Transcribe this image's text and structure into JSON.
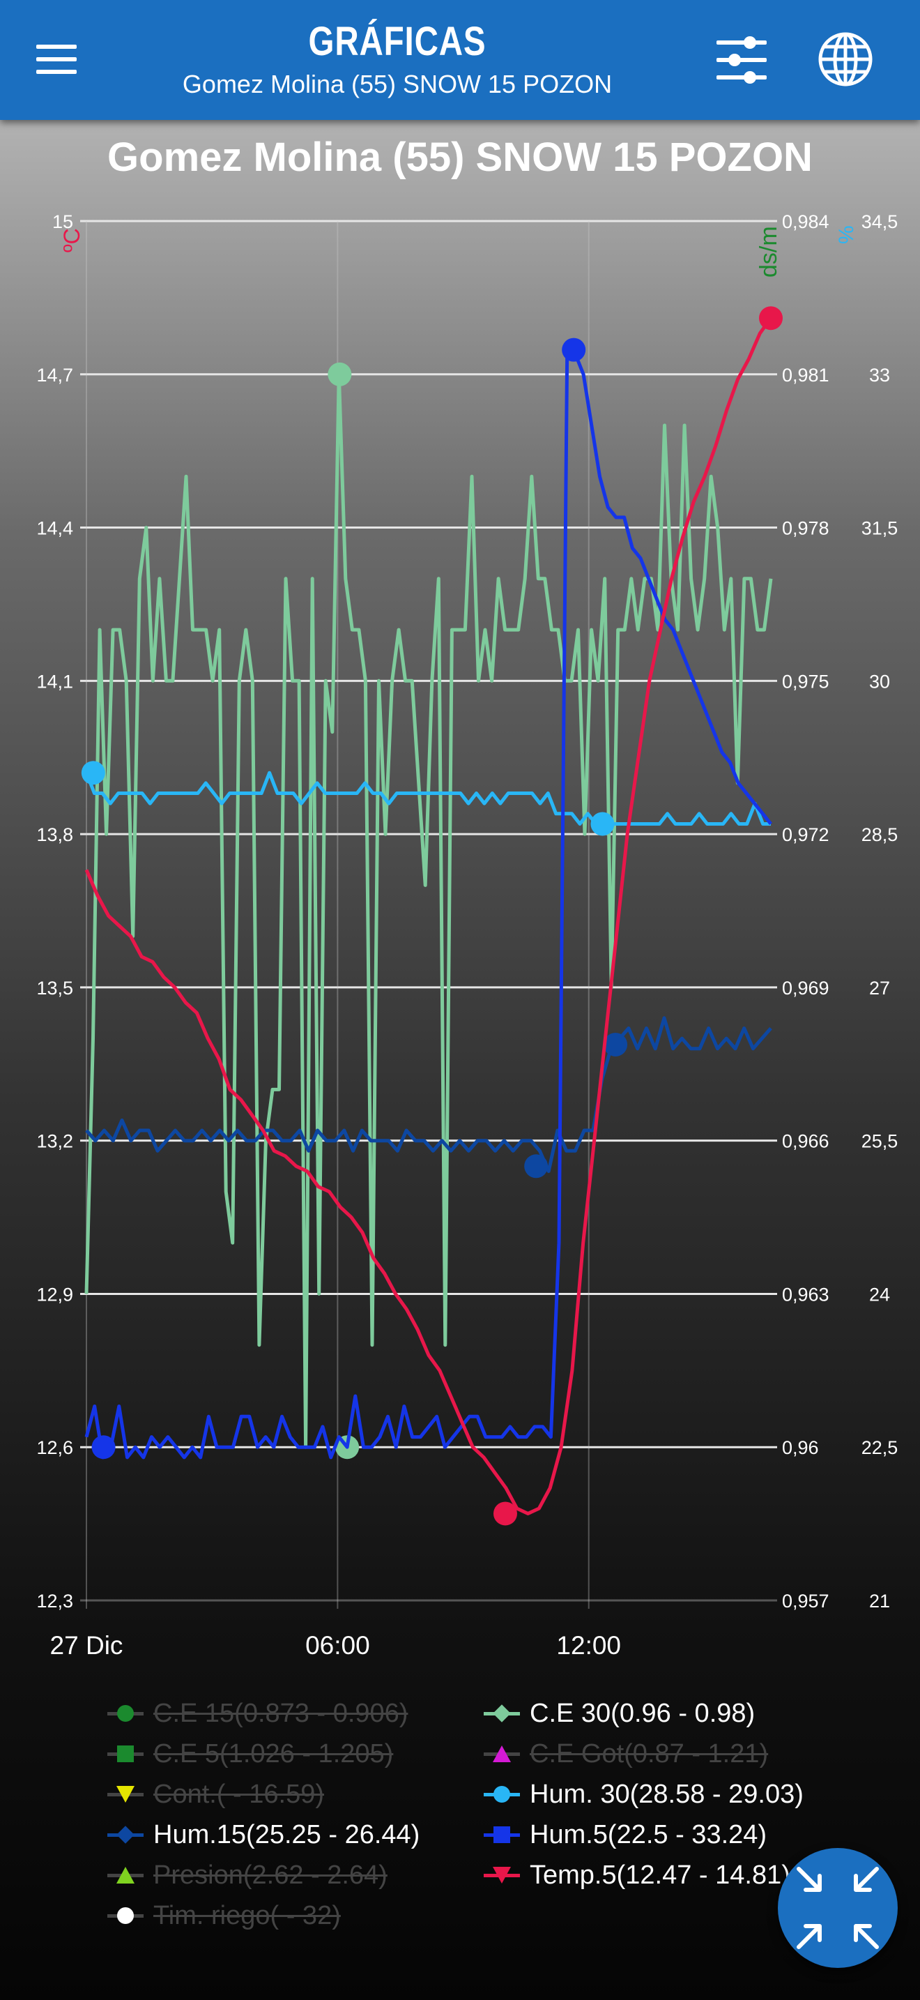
{
  "appbar": {
    "title": "GRÁFICAS",
    "subtitle": "Gomez Molina (55) SNOW 15 POZON",
    "icons": [
      "menu-icon",
      "tune-icon",
      "globe-icon"
    ]
  },
  "chart_data": {
    "type": "line",
    "title": "Gomez Molina (55) SNOW 15 POZON",
    "x_labels": [
      "27 Dic",
      "06:00",
      "12:00"
    ],
    "x_range": [
      "27 Dic 00:00",
      "27 Dic 16:30"
    ],
    "axes": {
      "left": {
        "unit": "ºC",
        "ylim": [
          12.3,
          15
        ],
        "ticks": [
          "12,3",
          "12,6",
          "12,9",
          "13,2",
          "13,5",
          "13,8",
          "14,1",
          "14,4",
          "14,7",
          "15"
        ]
      },
      "right1": {
        "unit": "ds/m",
        "ylim": [
          0.957,
          0.984
        ],
        "ticks": [
          "0,957",
          "0,96",
          "0,963",
          "0,966",
          "0,969",
          "0,972",
          "0,975",
          "0,978",
          "0,981",
          "0,984"
        ]
      },
      "right2": {
        "unit": "%",
        "ylim": [
          21,
          34.5
        ],
        "ticks": [
          "21",
          "22,5",
          "24",
          "25,5",
          "27",
          "28,5",
          "30",
          "31,5",
          "33",
          "34,5"
        ]
      }
    },
    "grid": true,
    "series": [
      {
        "name": "C.E 30(0.96 - 0.98)",
        "axis": "right1",
        "color": "#7ecb9c",
        "values": [
          0.963,
          0.968,
          0.976,
          0.972,
          0.976,
          0.976,
          0.975,
          0.97,
          0.977,
          0.978,
          0.975,
          0.977,
          0.975,
          0.975,
          0.977,
          0.979,
          0.976,
          0.976,
          0.976,
          0.975,
          0.976,
          0.965,
          0.964,
          0.975,
          0.976,
          0.975,
          0.962,
          0.966,
          0.967,
          0.967,
          0.977,
          0.975,
          0.975,
          0.96,
          0.977,
          0.963,
          0.975,
          0.974,
          0.981,
          0.977,
          0.976,
          0.976,
          0.975,
          0.962,
          0.975,
          0.972,
          0.975,
          0.976,
          0.975,
          0.975,
          0.973,
          0.971,
          0.975,
          0.977,
          0.962,
          0.976,
          0.976,
          0.976,
          0.979,
          0.975,
          0.976,
          0.975,
          0.977,
          0.976,
          0.976,
          0.976,
          0.977,
          0.979,
          0.977,
          0.977,
          0.976,
          0.976,
          0.975,
          0.975,
          0.976,
          0.972,
          0.976,
          0.975,
          0.977,
          0.969,
          0.976,
          0.976,
          0.977,
          0.976,
          0.977,
          0.977,
          0.976,
          0.98,
          0.977,
          0.976,
          0.98,
          0.977,
          0.976,
          0.977,
          0.979,
          0.978,
          0.976,
          0.977,
          0.973,
          0.977,
          0.977,
          0.976,
          0.976,
          0.977
        ],
        "marks": [
          [
            0.381,
            0.96
          ],
          [
            0.37,
            0.981
          ]
        ]
      },
      {
        "name": "Hum. 30(28.58 - 29.03)",
        "axis": "right2",
        "color": "#29b6f6",
        "values": [
          29.1,
          28.9,
          28.9,
          28.8,
          28.9,
          28.9,
          28.9,
          28.9,
          28.8,
          28.9,
          28.9,
          28.9,
          28.9,
          28.9,
          28.9,
          29.0,
          28.9,
          28.8,
          28.9,
          28.9,
          28.9,
          28.9,
          28.9,
          29.1,
          28.9,
          28.9,
          28.9,
          28.8,
          28.9,
          29.0,
          28.9,
          28.9,
          28.9,
          28.9,
          28.9,
          29.0,
          28.9,
          28.9,
          28.8,
          28.9,
          28.9,
          28.9,
          28.9,
          28.9,
          28.9,
          28.9,
          28.9,
          28.9,
          28.8,
          28.9,
          28.8,
          28.9,
          28.8,
          28.9,
          28.9,
          28.9,
          28.9,
          28.8,
          28.9,
          28.7,
          28.7,
          28.7,
          28.6,
          28.7,
          28.6,
          28.6,
          28.6,
          28.6,
          28.6,
          28.6,
          28.6,
          28.6,
          28.6,
          28.7,
          28.6,
          28.6,
          28.6,
          28.7,
          28.6,
          28.6,
          28.6,
          28.7,
          28.6,
          28.6,
          28.8,
          28.6,
          28.6
        ],
        "marks": [
          [
            0.01,
            29.1
          ],
          [
            0.754,
            28.6
          ]
        ]
      },
      {
        "name": "Hum.15(25.25 - 26.44)",
        "axis": "right2",
        "color": "#0d47a1",
        "values": [
          25.6,
          25.5,
          25.6,
          25.5,
          25.7,
          25.5,
          25.6,
          25.6,
          25.4,
          25.5,
          25.6,
          25.5,
          25.5,
          25.6,
          25.5,
          25.6,
          25.5,
          25.6,
          25.5,
          25.5,
          25.6,
          25.6,
          25.5,
          25.5,
          25.6,
          25.4,
          25.6,
          25.5,
          25.5,
          25.6,
          25.4,
          25.6,
          25.5,
          25.5,
          25.5,
          25.4,
          25.6,
          25.5,
          25.5,
          25.4,
          25.5,
          25.4,
          25.5,
          25.4,
          25.5,
          25.5,
          25.4,
          25.5,
          25.4,
          25.5,
          25.5,
          25.4,
          25.2,
          25.6,
          25.4,
          25.4,
          25.6,
          25.6,
          26.1,
          26.4,
          26.5,
          26.6,
          26.4,
          26.6,
          26.4,
          26.7,
          26.4,
          26.5,
          26.4,
          26.4,
          26.6,
          26.4,
          26.5,
          26.4,
          26.6,
          26.4,
          26.5,
          26.6
        ],
        "marks": [
          [
            0.657,
            25.25
          ],
          [
            0.773,
            26.44
          ]
        ]
      },
      {
        "name": "Hum.5(22.5 - 33.24)",
        "axis": "right2",
        "color": "#1535e8",
        "values": [
          22.6,
          22.9,
          22.4,
          22.5,
          22.9,
          22.4,
          22.5,
          22.4,
          22.6,
          22.5,
          22.6,
          22.5,
          22.4,
          22.5,
          22.4,
          22.8,
          22.5,
          22.5,
          22.5,
          22.8,
          22.8,
          22.5,
          22.6,
          22.5,
          22.8,
          22.6,
          22.5,
          22.5,
          22.5,
          22.7,
          22.4,
          22.6,
          22.5,
          23.0,
          22.5,
          22.5,
          22.6,
          22.8,
          22.5,
          22.9,
          22.6,
          22.6,
          22.7,
          22.8,
          22.5,
          22.6,
          22.7,
          22.8,
          22.8,
          22.6,
          22.6,
          22.6,
          22.7,
          22.6,
          22.6,
          22.7,
          22.7,
          22.6,
          24.5,
          33.2,
          33.2,
          33.0,
          32.5,
          32.0,
          31.7,
          31.6,
          31.6,
          31.3,
          31.2,
          31.0,
          30.8,
          30.6,
          30.5,
          30.3,
          30.1,
          29.9,
          29.7,
          29.5,
          29.3,
          29.2,
          29.0,
          28.9,
          28.8,
          28.7,
          28.6
        ],
        "marks": [
          [
            0.025,
            22.5
          ],
          [
            0.712,
            33.24
          ]
        ]
      },
      {
        "name": "Temp.5(12.47 - 14.81)",
        "axis": "left",
        "color": "#e8174a",
        "values": [
          13.73,
          13.68,
          13.64,
          13.62,
          13.6,
          13.56,
          13.55,
          13.52,
          13.5,
          13.47,
          13.45,
          13.4,
          13.36,
          13.3,
          13.28,
          13.25,
          13.22,
          13.18,
          13.17,
          13.15,
          13.14,
          13.11,
          13.1,
          13.07,
          13.05,
          13.02,
          12.97,
          12.94,
          12.9,
          12.87,
          12.83,
          12.78,
          12.75,
          12.7,
          12.65,
          12.6,
          12.58,
          12.55,
          12.52,
          12.48,
          12.47,
          12.48,
          12.52,
          12.6,
          12.75,
          13.0,
          13.2,
          13.4,
          13.6,
          13.8,
          13.95,
          14.1,
          14.2,
          14.3,
          14.38,
          14.45,
          14.5,
          14.56,
          14.63,
          14.69,
          14.73,
          14.78,
          14.81
        ],
        "marks": [
          [
            0.612,
            12.47
          ],
          [
            1.0,
            14.81
          ]
        ]
      }
    ]
  },
  "legend": [
    {
      "label": "C.E 15(0.873 - 0.906)",
      "color": "#1b8a2e",
      "marker": "circle",
      "visible": false
    },
    {
      "label": "C.E 30(0.96 - 0.98)",
      "color": "#7ecb9c",
      "marker": "diamond",
      "visible": true
    },
    {
      "label": "C.E 5(1.026 - 1.205)",
      "color": "#1b8a2e",
      "marker": "square",
      "visible": false
    },
    {
      "label": "C.E Got(0.87 - 1.21)",
      "color": "#d51ad5",
      "marker": "triangle-up",
      "visible": false
    },
    {
      "label": "Cont.( - 16.59)",
      "color": "#e6e600",
      "marker": "triangle-down",
      "visible": false
    },
    {
      "label": "Hum. 30(28.58 - 29.03)",
      "color": "#29b6f6",
      "marker": "circle",
      "visible": true
    },
    {
      "label": "Hum.15(25.25 - 26.44)",
      "color": "#0d47a1",
      "marker": "diamond",
      "visible": true
    },
    {
      "label": "Hum.5(22.5 - 33.24)",
      "color": "#1535e8",
      "marker": "square",
      "visible": true
    },
    {
      "label": "Presion(2.62 - 2.64)",
      "color": "#7fd320",
      "marker": "triangle-up",
      "visible": false
    },
    {
      "label": "Temp.5(12.47 - 14.81)",
      "color": "#e8174a",
      "marker": "triangle-down",
      "visible": true
    },
    {
      "label": "Tim. riego( - 32)",
      "color": "#ffffff",
      "marker": "circle",
      "visible": false
    }
  ],
  "fab": {
    "icon": "collapse-arrows-icon"
  }
}
